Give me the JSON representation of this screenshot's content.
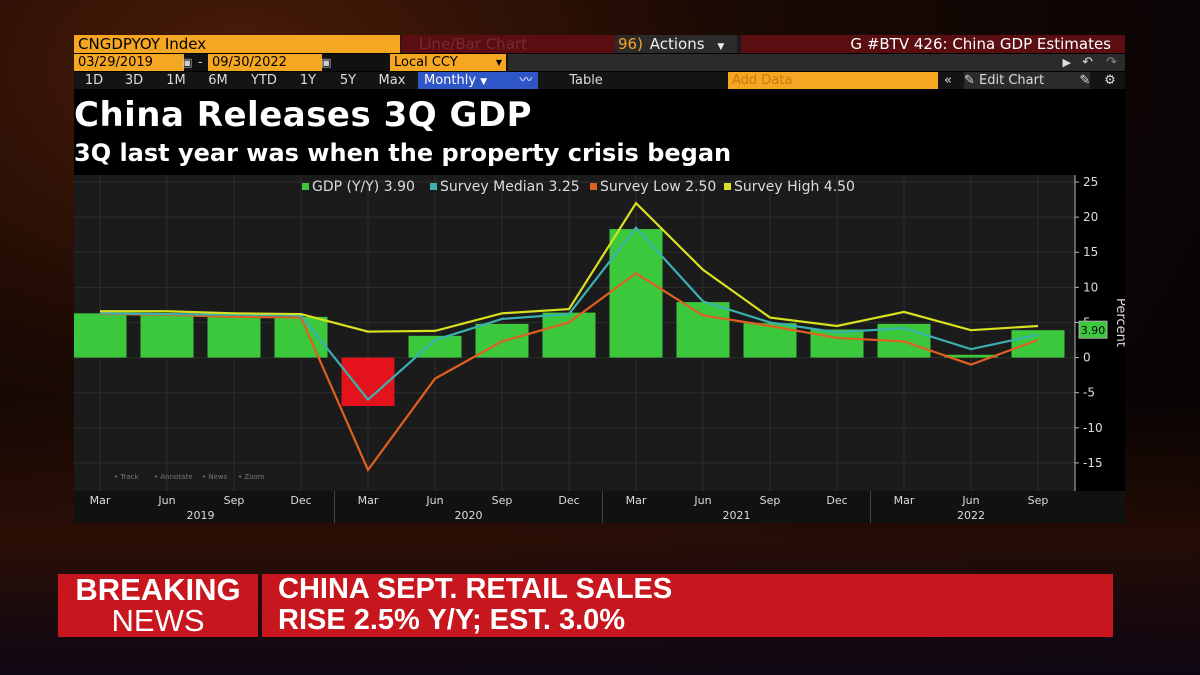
{
  "toolbar": {
    "ticker": "CNGDPYOY Index",
    "chart_type": "Line/Bar Chart",
    "actions_code": "96)",
    "actions_label": "Actions",
    "template": "G #BTV 426: China GDP Estimates",
    "start_date": "03/29/2019",
    "end_date": "09/30/2022",
    "currency": "Local CCY",
    "ranges": [
      "1D",
      "3D",
      "1M",
      "6M",
      "YTD",
      "1Y",
      "5Y",
      "Max"
    ],
    "period": "Monthly",
    "table_label": "Table",
    "add_data_placeholder": "Add Data",
    "edit_chart_label": "Edit Chart"
  },
  "headline": {
    "title": "China Releases 3Q GDP",
    "subtitle": "3Q last year was when the property crisis began"
  },
  "chart_data": {
    "type": "bar",
    "categories": [
      "Mar 2019",
      "Jun 2019",
      "Sep 2019",
      "Dec 2019",
      "Mar 2020",
      "Jun 2020",
      "Sep 2020",
      "Dec 2020",
      "Mar 2021",
      "Jun 2021",
      "Sep 2021",
      "Dec 2021",
      "Mar 2022",
      "Jun 2022",
      "Sep 2022"
    ],
    "x_tick_labels": [
      "Mar",
      "Jun",
      "Sep",
      "Dec",
      "Mar",
      "Jun",
      "Sep",
      "Dec",
      "Mar",
      "Jun",
      "Sep",
      "Dec",
      "Mar",
      "Jun",
      "Sep"
    ],
    "year_labels": [
      "2019",
      "2020",
      "2021",
      "2022"
    ],
    "series": [
      {
        "name": "GDP (Y/Y) 3.90",
        "type": "bar",
        "color": "#3cc83c",
        "negative_color": "#e3121b",
        "values": [
          6.3,
          6.0,
          5.9,
          5.8,
          -6.9,
          3.1,
          4.8,
          6.4,
          18.3,
          7.9,
          4.9,
          4.0,
          4.8,
          0.4,
          3.9
        ]
      },
      {
        "name": "Survey Median 3.25",
        "type": "line",
        "color": "#3ab0b0",
        "values": [
          6.3,
          6.2,
          6.1,
          6.0,
          -6.0,
          2.5,
          5.5,
          6.2,
          18.5,
          8.0,
          5.0,
          3.6,
          4.2,
          1.2,
          3.25
        ]
      },
      {
        "name": "Survey Low 2.50",
        "type": "line",
        "color": "#e06020",
        "values": [
          6.2,
          6.1,
          5.8,
          5.7,
          -16.0,
          -3.0,
          2.3,
          5.0,
          12.0,
          6.0,
          4.5,
          2.8,
          2.3,
          -1.0,
          2.5
        ]
      },
      {
        "name": "Survey High 4.50",
        "type": "line",
        "color": "#d8e020",
        "values": [
          6.6,
          6.6,
          6.3,
          6.2,
          3.7,
          3.8,
          6.3,
          6.9,
          22.0,
          12.5,
          5.7,
          4.5,
          6.5,
          3.9,
          4.5
        ]
      }
    ],
    "last_value_label": "3.90",
    "ylabel": "Percent",
    "ylim": [
      -19,
      26
    ],
    "yticks": [
      -15,
      -10,
      -5,
      0,
      5,
      10,
      15,
      20,
      25
    ],
    "legend_position": "top",
    "grid": true,
    "mini_tools": [
      "Track",
      "Annotate",
      "News",
      "Zoom"
    ]
  },
  "ticker_band": {
    "label_line1": "BREAKING",
    "label_line2": "NEWS",
    "text_line1": "CHINA SEPT. RETAIL SALES",
    "text_line2": "RISE 2.5% Y/Y; EST. 3.0%"
  }
}
